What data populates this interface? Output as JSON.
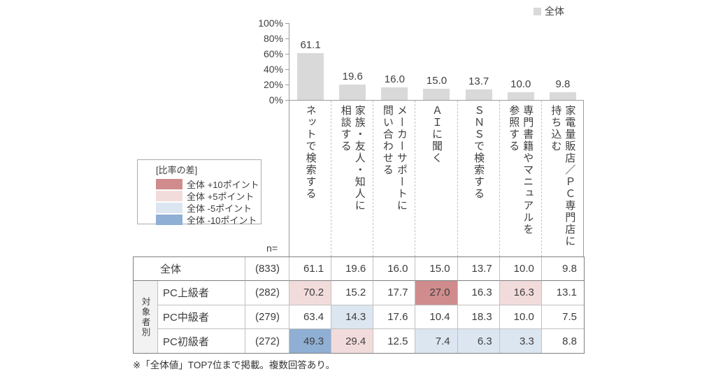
{
  "legend_top": {
    "label": "全体",
    "swatch_color": "#d9d9d9"
  },
  "chart_data": {
    "type": "bar",
    "title": "",
    "xlabel": "",
    "ylabel": "",
    "ylim": [
      0,
      100
    ],
    "yticks": [
      "100%",
      "80%",
      "60%",
      "40%",
      "20%",
      "0%"
    ],
    "grid": "off",
    "legend_position": "top-right",
    "bar_color": "#d9d9d9",
    "series_name": "全体",
    "categories": [
      {
        "lines": [
          "ネットで検索する"
        ]
      },
      {
        "lines": [
          "家族・友人・知人に",
          "相談する"
        ]
      },
      {
        "lines": [
          "メーカーサポートに",
          "問い合わせる"
        ]
      },
      {
        "lines": [
          "ＡＩに聞く"
        ]
      },
      {
        "lines": [
          "ＳＮＳで検索する"
        ]
      },
      {
        "lines": [
          "専門書籍やマニュアルを",
          "参照する"
        ]
      },
      {
        "lines": [
          "家電量販店／ＰＣ専門店に",
          "持ち込む"
        ]
      }
    ],
    "values": [
      61.1,
      19.6,
      16.0,
      15.0,
      13.7,
      10.0,
      9.8
    ],
    "value_labels": [
      "61.1",
      "19.6",
      "16.0",
      "15.0",
      "13.7",
      "10.0",
      "9.8"
    ]
  },
  "diff_legend": {
    "title": "[比率の差]",
    "entries": [
      {
        "key": "p10",
        "label": "全体 +10ポイント"
      },
      {
        "key": "p5",
        "label": "全体 +5ポイント"
      },
      {
        "key": "m5",
        "label": "全体 -5ポイント"
      },
      {
        "key": "m10",
        "label": "全体 -10ポイント"
      }
    ]
  },
  "diff_colors": {
    "p10": "#d08c8c",
    "p5": "#f2dcdb",
    "m5": "#dce6f1",
    "m10": "#8fafd4",
    "none": "#ffffff"
  },
  "table": {
    "n_header": "n=",
    "group_label": "対象者別",
    "rows": [
      {
        "label": "全体",
        "n": "(833)",
        "values": [
          "61.1",
          "19.6",
          "16.0",
          "15.0",
          "13.7",
          "10.0",
          "9.8"
        ],
        "diffs": [
          "none",
          "none",
          "none",
          "none",
          "none",
          "none",
          "none"
        ]
      },
      {
        "label": "PC上級者",
        "n": "(282)",
        "values": [
          "70.2",
          "15.2",
          "17.7",
          "27.0",
          "16.3",
          "16.3",
          "13.1"
        ],
        "diffs": [
          "p5",
          "none",
          "none",
          "p10",
          "none",
          "p5",
          "none"
        ]
      },
      {
        "label": "PC中級者",
        "n": "(279)",
        "values": [
          "63.4",
          "14.3",
          "17.6",
          "10.4",
          "18.3",
          "10.0",
          "7.5"
        ],
        "diffs": [
          "none",
          "m5",
          "none",
          "none",
          "none",
          "none",
          "none"
        ]
      },
      {
        "label": "PC初級者",
        "n": "(272)",
        "values": [
          "49.3",
          "29.4",
          "12.5",
          "7.4",
          "6.3",
          "3.3",
          "8.8"
        ],
        "diffs": [
          "m10",
          "p5",
          "none",
          "m5",
          "m5",
          "m5",
          "none"
        ]
      }
    ]
  },
  "footer": {
    "note": "※「全体値」TOP7位まで掲載。複数回答あり。"
  }
}
